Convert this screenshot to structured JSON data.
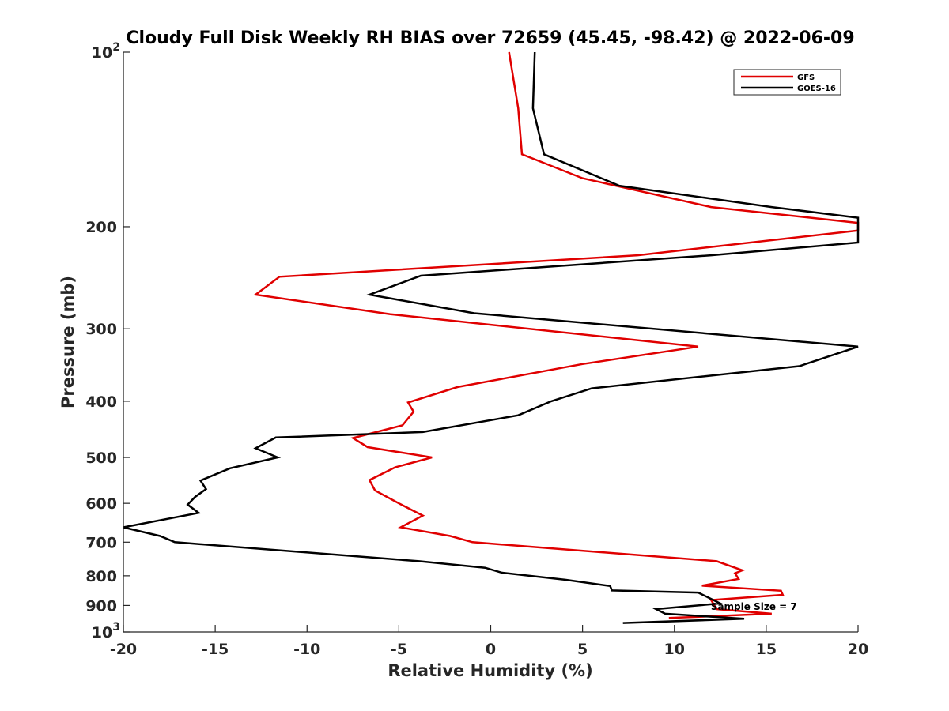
{
  "chart_data": {
    "type": "line",
    "title": "Cloudy Full Disk Weekly RH BIAS over 72659 (45.45, -98.42) @ 2022-06-09",
    "xlabel": "Relative Humidity (%)",
    "ylabel": "Pressure (mb)",
    "xlim": [
      -20,
      20
    ],
    "ylim": [
      100,
      1000
    ],
    "y_scale": "log",
    "y_reversed": true,
    "grid": false,
    "legend_position": "top-right",
    "x_ticks": [
      {
        "value": -20,
        "label": "-20"
      },
      {
        "value": -15,
        "label": "-15"
      },
      {
        "value": -10,
        "label": "-10"
      },
      {
        "value": -5,
        "label": "-5"
      },
      {
        "value": 0,
        "label": "0"
      },
      {
        "value": 5,
        "label": "5"
      },
      {
        "value": 10,
        "label": "10"
      },
      {
        "value": 15,
        "label": "15"
      },
      {
        "value": 20,
        "label": "20"
      }
    ],
    "y_ticks": [
      {
        "value": 100,
        "base": "10",
        "exp": "2"
      },
      {
        "value": 200,
        "base": "200",
        "exp": ""
      },
      {
        "value": 300,
        "base": "300",
        "exp": ""
      },
      {
        "value": 400,
        "base": "400",
        "exp": ""
      },
      {
        "value": 500,
        "base": "500",
        "exp": ""
      },
      {
        "value": 600,
        "base": "600",
        "exp": ""
      },
      {
        "value": 700,
        "base": "700",
        "exp": ""
      },
      {
        "value": 800,
        "base": "800",
        "exp": ""
      },
      {
        "value": 900,
        "base": "900",
        "exp": ""
      },
      {
        "value": 1000,
        "base": "10",
        "exp": "3"
      }
    ],
    "annotation": "Sample Size = 7",
    "annotation_anchor": {
      "x": 12.5,
      "p": 905
    },
    "series": [
      {
        "name": "GFS",
        "color": "#e00000",
        "points": [
          [
            1.0,
            100
          ],
          [
            1.5,
            125
          ],
          [
            1.7,
            150
          ],
          [
            5.0,
            165
          ],
          [
            12.0,
            185
          ],
          [
            20.0,
            197
          ],
          [
            20.0,
            203
          ],
          [
            8.0,
            224
          ],
          [
            -11.5,
            244
          ],
          [
            -12.8,
            262
          ],
          [
            -5.5,
            283
          ],
          [
            11.3,
            322
          ],
          [
            5.0,
            345
          ],
          [
            -1.8,
            378
          ],
          [
            -4.5,
            402
          ],
          [
            -4.2,
            417
          ],
          [
            -4.8,
            440
          ],
          [
            -7.5,
            463
          ],
          [
            -6.7,
            480
          ],
          [
            -3.2,
            500
          ],
          [
            -5.2,
            520
          ],
          [
            -6.6,
            547
          ],
          [
            -6.3,
            570
          ],
          [
            -5.0,
            600
          ],
          [
            -3.7,
            630
          ],
          [
            -4.9,
            660
          ],
          [
            -2.2,
            683
          ],
          [
            -1.0,
            700
          ],
          [
            12.3,
            755
          ],
          [
            13.7,
            783
          ],
          [
            13.3,
            792
          ],
          [
            13.5,
            810
          ],
          [
            11.5,
            832
          ],
          [
            15.8,
            849
          ],
          [
            15.9,
            863
          ],
          [
            12.0,
            881
          ],
          [
            12.3,
            913
          ],
          [
            15.3,
            930
          ],
          [
            9.7,
            946
          ]
        ]
      },
      {
        "name": "GOES-16",
        "color": "#000000",
        "points": [
          [
            2.4,
            100
          ],
          [
            2.3,
            125
          ],
          [
            2.9,
            150
          ],
          [
            7.0,
            170
          ],
          [
            15.3,
            185
          ],
          [
            20.0,
            193
          ],
          [
            20.0,
            213
          ],
          [
            12.0,
            224
          ],
          [
            -3.8,
            243
          ],
          [
            -6.6,
            262
          ],
          [
            -0.9,
            282
          ],
          [
            20.0,
            322
          ],
          [
            16.8,
            348
          ],
          [
            5.5,
            380
          ],
          [
            3.3,
            400
          ],
          [
            1.5,
            423
          ],
          [
            -3.7,
            452
          ],
          [
            -11.7,
            462
          ],
          [
            -12.8,
            482
          ],
          [
            -11.6,
            500
          ],
          [
            -14.2,
            522
          ],
          [
            -15.8,
            548
          ],
          [
            -15.5,
            567
          ],
          [
            -16.1,
            585
          ],
          [
            -16.5,
            603
          ],
          [
            -15.9,
            623
          ],
          [
            -20.0,
            660
          ],
          [
            -18.0,
            683
          ],
          [
            -17.2,
            700
          ],
          [
            -3.9,
            755
          ],
          [
            -0.3,
            775
          ],
          [
            0.6,
            790
          ],
          [
            4.1,
            813
          ],
          [
            6.5,
            833
          ],
          [
            6.6,
            848
          ],
          [
            11.3,
            855
          ],
          [
            12.5,
            893
          ],
          [
            9.0,
            913
          ],
          [
            9.5,
            930
          ],
          [
            13.8,
            949
          ],
          [
            7.2,
            965
          ]
        ]
      }
    ]
  }
}
